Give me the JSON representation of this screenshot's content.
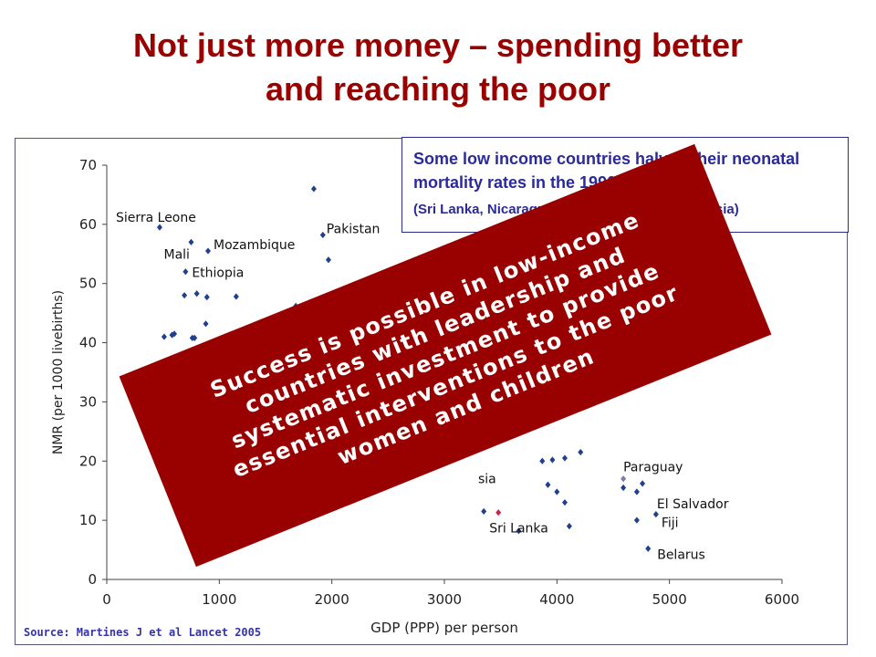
{
  "slide": {
    "title_line1": "Not just more money – spending better",
    "title_line2": "and reaching the poor",
    "callout_main": "Some low income countries halved their neonatal mortality rates in the 1990s",
    "callout_sub": "(Sri Lanka, Nicaragua, Honduras, Peru, Indonesia)",
    "source": "Source: Martines J et al Lancet 2005",
    "banner": "Success is possible in low-income countries with leadership and systematic investment to provide essential interventions to the poor women and children"
  },
  "colors": {
    "title": "#990000",
    "banner": "#990000",
    "point": "#1f3f8f",
    "highlight_red": "#cc2244",
    "highlight_purple": "#8877aa",
    "callout_text": "#2a2a9a"
  },
  "chart_data": {
    "type": "scatter",
    "xlabel": "GDP (PPP) per person",
    "ylabel": "NMR (per 1000 livebirths)",
    "xlim": [
      0,
      6000
    ],
    "ylim": [
      0,
      70
    ],
    "xticks": [
      0,
      1000,
      2000,
      3000,
      4000,
      5000,
      6000
    ],
    "yticks": [
      0,
      10,
      20,
      30,
      40,
      50,
      60,
      70
    ],
    "xtick_labels": [
      "0",
      "1000",
      "2000",
      "3000",
      "4000",
      "5000",
      "6000"
    ],
    "ytick_labels": [
      "0",
      "10",
      "20",
      "30",
      "40",
      "50",
      "60",
      "70"
    ],
    "grid": false,
    "points": [
      {
        "x": 470,
        "y": 59.5,
        "label": "Sierra Leone"
      },
      {
        "x": 510,
        "y": 41,
        "label": ""
      },
      {
        "x": 580,
        "y": 41.3,
        "label": ""
      },
      {
        "x": 600,
        "y": 41.5,
        "label": ""
      },
      {
        "x": 700,
        "y": 52,
        "label": "Ethiopia"
      },
      {
        "x": 690,
        "y": 48,
        "label": ""
      },
      {
        "x": 750,
        "y": 57,
        "label": "Mali"
      },
      {
        "x": 760,
        "y": 40.8,
        "label": ""
      },
      {
        "x": 780,
        "y": 40.8,
        "label": ""
      },
      {
        "x": 800,
        "y": 48.3,
        "label": ""
      },
      {
        "x": 820,
        "y": 34,
        "label": ""
      },
      {
        "x": 840,
        "y": 35,
        "label": ""
      },
      {
        "x": 880,
        "y": 43.2,
        "label": ""
      },
      {
        "x": 890,
        "y": 47.7,
        "label": ""
      },
      {
        "x": 900,
        "y": 55.5,
        "label": "Mozambique"
      },
      {
        "x": 970,
        "y": 38.5,
        "label": ""
      },
      {
        "x": 1010,
        "y": 39.8,
        "label": ""
      },
      {
        "x": 1100,
        "y": 40,
        "label": ""
      },
      {
        "x": 1150,
        "y": 47.8,
        "label": ""
      },
      {
        "x": 1310,
        "y": 40.2,
        "label": ""
      },
      {
        "x": 1420,
        "y": 39.5,
        "label": ""
      },
      {
        "x": 1550,
        "y": 42.8,
        "label": ""
      },
      {
        "x": 1680,
        "y": 46.2,
        "label": ""
      },
      {
        "x": 1840,
        "y": 66,
        "label": ""
      },
      {
        "x": 1920,
        "y": 58.2,
        "label": "Pakistan"
      },
      {
        "x": 1970,
        "y": 54,
        "label": ""
      },
      {
        "x": 1980,
        "y": 44.5,
        "label": ""
      },
      {
        "x": 3350,
        "y": 11.5,
        "label": ""
      },
      {
        "x": 3480,
        "y": 11.3,
        "label": "Sri Lanka",
        "highlight": "red"
      },
      {
        "x": 3660,
        "y": 8.2,
        "label": ""
      },
      {
        "x": 3870,
        "y": 20,
        "label": ""
      },
      {
        "x": 3920,
        "y": 16,
        "label": ""
      },
      {
        "x": 3960,
        "y": 20.2,
        "label": ""
      },
      {
        "x": 4000,
        "y": 14.8,
        "label": ""
      },
      {
        "x": 4070,
        "y": 20.5,
        "label": ""
      },
      {
        "x": 4070,
        "y": 13,
        "label": ""
      },
      {
        "x": 4110,
        "y": 9,
        "label": ""
      },
      {
        "x": 4210,
        "y": 21.5,
        "label": ""
      },
      {
        "x": 4590,
        "y": 17,
        "label": "Paraguay",
        "highlight": "purple"
      },
      {
        "x": 4590,
        "y": 15.5,
        "label": ""
      },
      {
        "x": 4710,
        "y": 14.8,
        "label": "El Salvador"
      },
      {
        "x": 4710,
        "y": 10,
        "label": ""
      },
      {
        "x": 4760,
        "y": 16.2,
        "label": ""
      },
      {
        "x": 4810,
        "y": 5.2,
        "label": "Belarus"
      },
      {
        "x": 4880,
        "y": 11,
        "label": "Fiji"
      }
    ],
    "partial_labels": [
      {
        "x": 3300,
        "y": 16.3,
        "text": "sia"
      }
    ]
  }
}
